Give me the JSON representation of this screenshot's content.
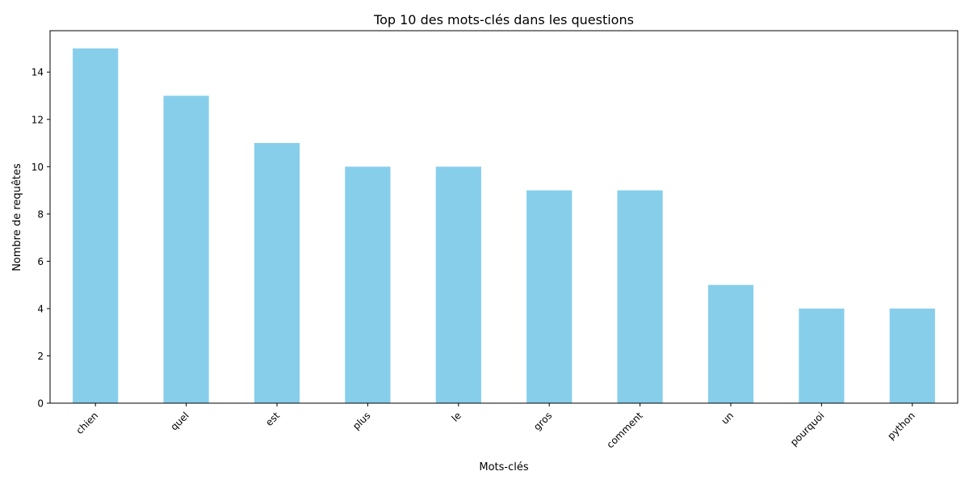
{
  "chart_data": {
    "type": "bar",
    "title": "Top 10 des mots-clés dans les questions",
    "xlabel": "Mots-clés",
    "ylabel": "Nombre de requêtes",
    "categories": [
      "chien",
      "quel",
      "est",
      "plus",
      "le",
      "gros",
      "comment",
      "un",
      "pourquoi",
      "python"
    ],
    "values": [
      15,
      13,
      11,
      10,
      10,
      9,
      9,
      5,
      4,
      4
    ],
    "ylim": [
      0,
      15.75
    ],
    "yticks": [
      0,
      2,
      4,
      6,
      8,
      10,
      12,
      14
    ],
    "grid": false,
    "legend": "none",
    "bar_color": "#87CEEB",
    "axis_color": "#000000"
  }
}
